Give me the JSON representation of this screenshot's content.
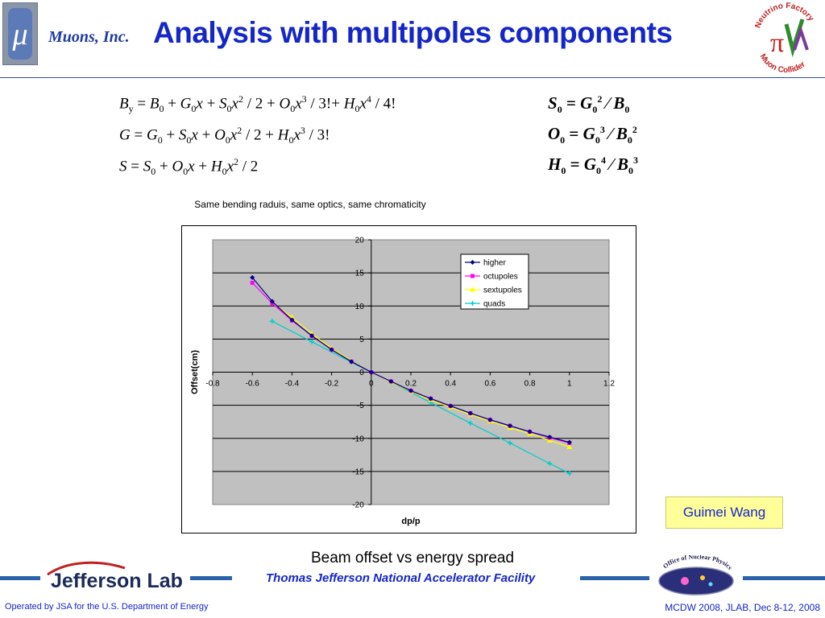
{
  "header": {
    "logo_glyph": "μ",
    "company": "Muons, Inc.",
    "title": "Analysis with multipoles components",
    "nf_logo_top": "Neutrino Factory",
    "nf_logo_bottom": "Muon Collider"
  },
  "equations_left": [
    "B_y = B_0 + G_0 x + S_0 x^2/2 + O_0 x^3/3! + H_0 x^4/4!",
    "G = G_0 + S_0 x + O_0 x^2/2 + H_0 x^3/3!",
    "S = S_0 + O_0 x + H_0 x^2/2"
  ],
  "equations_right": [
    "S_0 = G_0^2 / B_0",
    "O_0 = G_0^3 / B_0^2",
    "H_0 = G_0^4 / B_0^3"
  ],
  "chart_data": {
    "type": "line",
    "title": "Same bending raduis, same optics, same chromaticity",
    "xlabel": "dp/p",
    "ylabel": "Offset(cm)",
    "xlim": [
      -0.8,
      1.2
    ],
    "ylim": [
      -20,
      20
    ],
    "xticks": [
      "-0.8",
      "-0.6",
      "-0.4",
      "-0.2",
      "0",
      "0.2",
      "0.4",
      "0.6",
      "0.8",
      "1",
      "1.2"
    ],
    "yticks": [
      "20",
      "15",
      "10",
      "5",
      "0",
      "-5",
      "-10",
      "-15",
      "-20"
    ],
    "grid": "horizontal",
    "legend_position": "top-right",
    "series": [
      {
        "name": "higher",
        "color": "#000080",
        "marker": "diamond",
        "x": [
          -0.6,
          -0.5,
          -0.4,
          -0.3,
          -0.2,
          -0.1,
          0,
          0.1,
          0.2,
          0.3,
          0.4,
          0.5,
          0.6,
          0.7,
          0.8,
          0.9,
          1.0
        ],
        "y": [
          14.3,
          10.7,
          7.9,
          5.5,
          3.4,
          1.6,
          0,
          -1.4,
          -2.8,
          -4.0,
          -5.1,
          -6.2,
          -7.2,
          -8.1,
          -9.0,
          -9.8,
          -10.6
        ]
      },
      {
        "name": "octupoles",
        "color": "#ff00ff",
        "marker": "square",
        "x": [
          -0.6,
          -0.5,
          -0.4,
          -0.3,
          -0.2,
          -0.1,
          0,
          0.1,
          0.2,
          0.3,
          0.4,
          0.5,
          0.6,
          0.7,
          0.8,
          0.9,
          1.0
        ],
        "y": [
          13.5,
          10.4,
          7.8,
          5.5,
          3.4,
          1.6,
          0,
          -1.4,
          -2.8,
          -4.0,
          -5.1,
          -6.2,
          -7.2,
          -8.1,
          -9.0,
          -9.9,
          -10.7
        ]
      },
      {
        "name": "sextupoles",
        "color": "#ffff00",
        "marker": "triangle",
        "x": [
          -0.5,
          -0.4,
          -0.3,
          -0.2,
          -0.1,
          0,
          0.1,
          0.2,
          0.3,
          0.4,
          0.5,
          0.6,
          0.7,
          0.8,
          0.9,
          1.0
        ],
        "y": [
          10.5,
          8.3,
          5.8,
          3.6,
          1.7,
          0,
          -1.5,
          -2.9,
          -4.2,
          -5.3,
          -6.4,
          -7.4,
          -8.4,
          -9.3,
          -10.3,
          -11.3
        ]
      },
      {
        "name": "quads",
        "color": "#00cccc",
        "marker": "star",
        "x": [
          -0.5,
          -0.3,
          -0.1,
          0.1,
          0.3,
          0.5,
          0.7,
          0.9,
          1.0
        ],
        "y": [
          7.7,
          4.6,
          1.5,
          -1.5,
          -4.6,
          -7.7,
          -10.7,
          -13.8,
          -15.3
        ]
      }
    ]
  },
  "author": "Guimei Wang",
  "caption": "Beam offset vs energy spread",
  "footer": {
    "jlab_logo_text": "Jefferson Lab",
    "jlab_full_name": "Thomas Jefferson National Accelerator Facility",
    "onp_logo_text": "Office of Nuclear Physics",
    "left": "Operated by JSA for the U.S. Department of Energy",
    "right": "MCDW 2008, JLAB, Dec 8-12, 2008"
  },
  "colors": {
    "title": "#1426c8",
    "band": "#2b61a8",
    "plot_area": "#c0c0c0",
    "author_bg": "#ffff99"
  }
}
